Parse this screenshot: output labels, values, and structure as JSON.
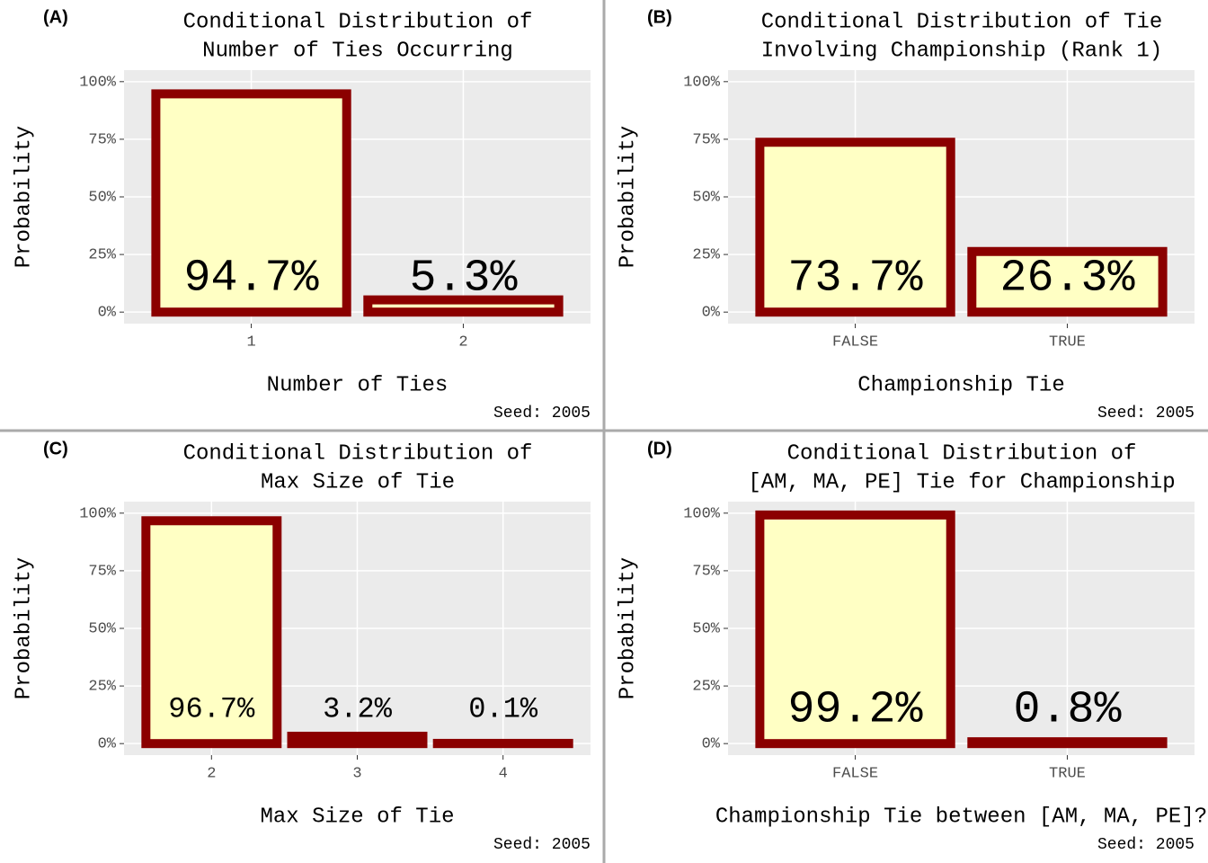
{
  "chart_data": [
    {
      "type": "bar",
      "panel_label": "(A)",
      "title": [
        "Conditional Distribution of",
        "Number of Ties Occurring"
      ],
      "x_label": "Number of Ties",
      "y_label": "Probability",
      "caption": "Seed: 2005",
      "categories": [
        "1",
        "2"
      ],
      "values": [
        94.7,
        5.3
      ],
      "value_labels": [
        "94.7%",
        "5.3%"
      ],
      "color": "#ffffc4",
      "edge_color": "#8b0000",
      "ylim": [
        -5,
        105
      ],
      "yticks": [
        {
          "value": 0,
          "label": "0%"
        },
        {
          "value": 25,
          "label": "25%"
        },
        {
          "value": 50,
          "label": "50%"
        },
        {
          "value": 75,
          "label": "75%"
        },
        {
          "value": 100,
          "label": "100%"
        }
      ],
      "grid": true
    },
    {
      "type": "bar",
      "panel_label": "(B)",
      "title": [
        "Conditional Distribution of Tie",
        "Involving Championship (Rank 1)"
      ],
      "x_label": "Championship Tie",
      "y_label": "Probability",
      "caption": "Seed: 2005",
      "categories": [
        "FALSE",
        "TRUE"
      ],
      "values": [
        73.7,
        26.3
      ],
      "value_labels": [
        "73.7%",
        "26.3%"
      ],
      "color": "#ffffc4",
      "edge_color": "#8b0000",
      "ylim": [
        -5,
        105
      ],
      "yticks": [
        {
          "value": 0,
          "label": "0%"
        },
        {
          "value": 25,
          "label": "25%"
        },
        {
          "value": 50,
          "label": "50%"
        },
        {
          "value": 75,
          "label": "75%"
        },
        {
          "value": 100,
          "label": "100%"
        }
      ],
      "grid": true
    },
    {
      "type": "bar",
      "panel_label": "(C)",
      "title": [
        "Conditional Distribution of",
        "Max Size of Tie"
      ],
      "x_label": "Max Size of Tie",
      "y_label": "Probability",
      "caption": "Seed: 2005",
      "categories": [
        "2",
        "3",
        "4"
      ],
      "values": [
        96.7,
        3.2,
        0.1
      ],
      "value_labels": [
        "96.7%",
        "3.2%",
        "0.1%"
      ],
      "color": "#ffffc4",
      "edge_color": "#8b0000",
      "ylim": [
        -5,
        105
      ],
      "yticks": [
        {
          "value": 0,
          "label": "0%"
        },
        {
          "value": 25,
          "label": "25%"
        },
        {
          "value": 50,
          "label": "50%"
        },
        {
          "value": 75,
          "label": "75%"
        },
        {
          "value": 100,
          "label": "100%"
        }
      ],
      "grid": true
    },
    {
      "type": "bar",
      "panel_label": "(D)",
      "title": [
        "Conditional Distribution of",
        "[AM, MA, PE] Tie for Championship"
      ],
      "x_label": "Championship Tie between [AM, MA, PE]?",
      "y_label": "Probability",
      "caption": "Seed: 2005",
      "categories": [
        "FALSE",
        "TRUE"
      ],
      "values": [
        99.2,
        0.8
      ],
      "value_labels": [
        "99.2%",
        "0.8%"
      ],
      "color": "#ffffc4",
      "edge_color": "#8b0000",
      "ylim": [
        -5,
        105
      ],
      "yticks": [
        {
          "value": 0,
          "label": "0%"
        },
        {
          "value": 25,
          "label": "25%"
        },
        {
          "value": 50,
          "label": "50%"
        },
        {
          "value": 75,
          "label": "75%"
        },
        {
          "value": 100,
          "label": "100%"
        }
      ],
      "grid": true
    }
  ]
}
